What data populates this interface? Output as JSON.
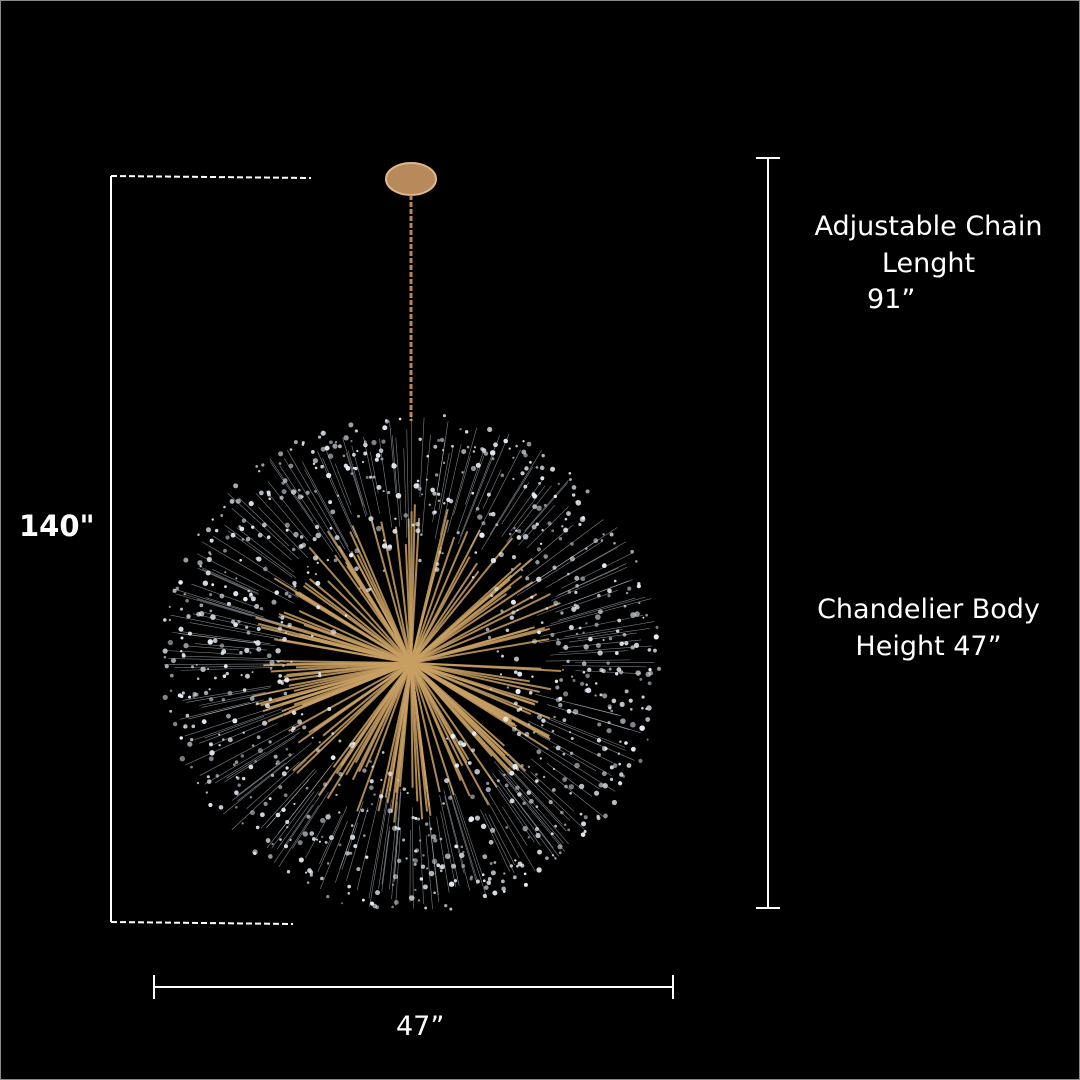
{
  "dimensions": {
    "total_height": "140\"",
    "chain_label_line1": "Adjustable Chain",
    "chain_label_line2": "Lenght",
    "chain_value": "91”",
    "body_label_line1": "Chandelier Body",
    "body_label_line2": "Height 47”",
    "width": "47”"
  },
  "colors": {
    "background": "#000000",
    "gold": "#c9a063",
    "crystal": "#e8eef5",
    "lines": "#ffffff"
  }
}
